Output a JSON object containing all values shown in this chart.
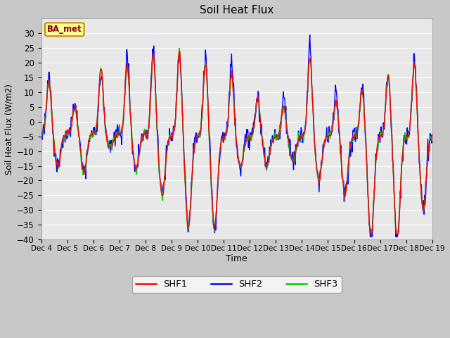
{
  "title": "Soil Heat Flux",
  "xlabel": "Time",
  "ylabel": "Soil Heat Flux (W/m2)",
  "ylim": [
    -40,
    35
  ],
  "yticks": [
    -40,
    -35,
    -30,
    -25,
    -20,
    -15,
    -10,
    -5,
    0,
    5,
    10,
    15,
    20,
    25,
    30
  ],
  "colors": {
    "SHF1": "#ff0000",
    "SHF2": "#0000ff",
    "SHF3": "#00cc00"
  },
  "linewidth": 1.0,
  "plot_bg_color": "#e8e8e8",
  "fig_bg_color": "#c8c8c8",
  "legend_label": "BA_met",
  "legend_bg": "#ffff99",
  "legend_border": "#cc8800",
  "n_days": 15,
  "start_day": 4,
  "samples_per_day": 48
}
